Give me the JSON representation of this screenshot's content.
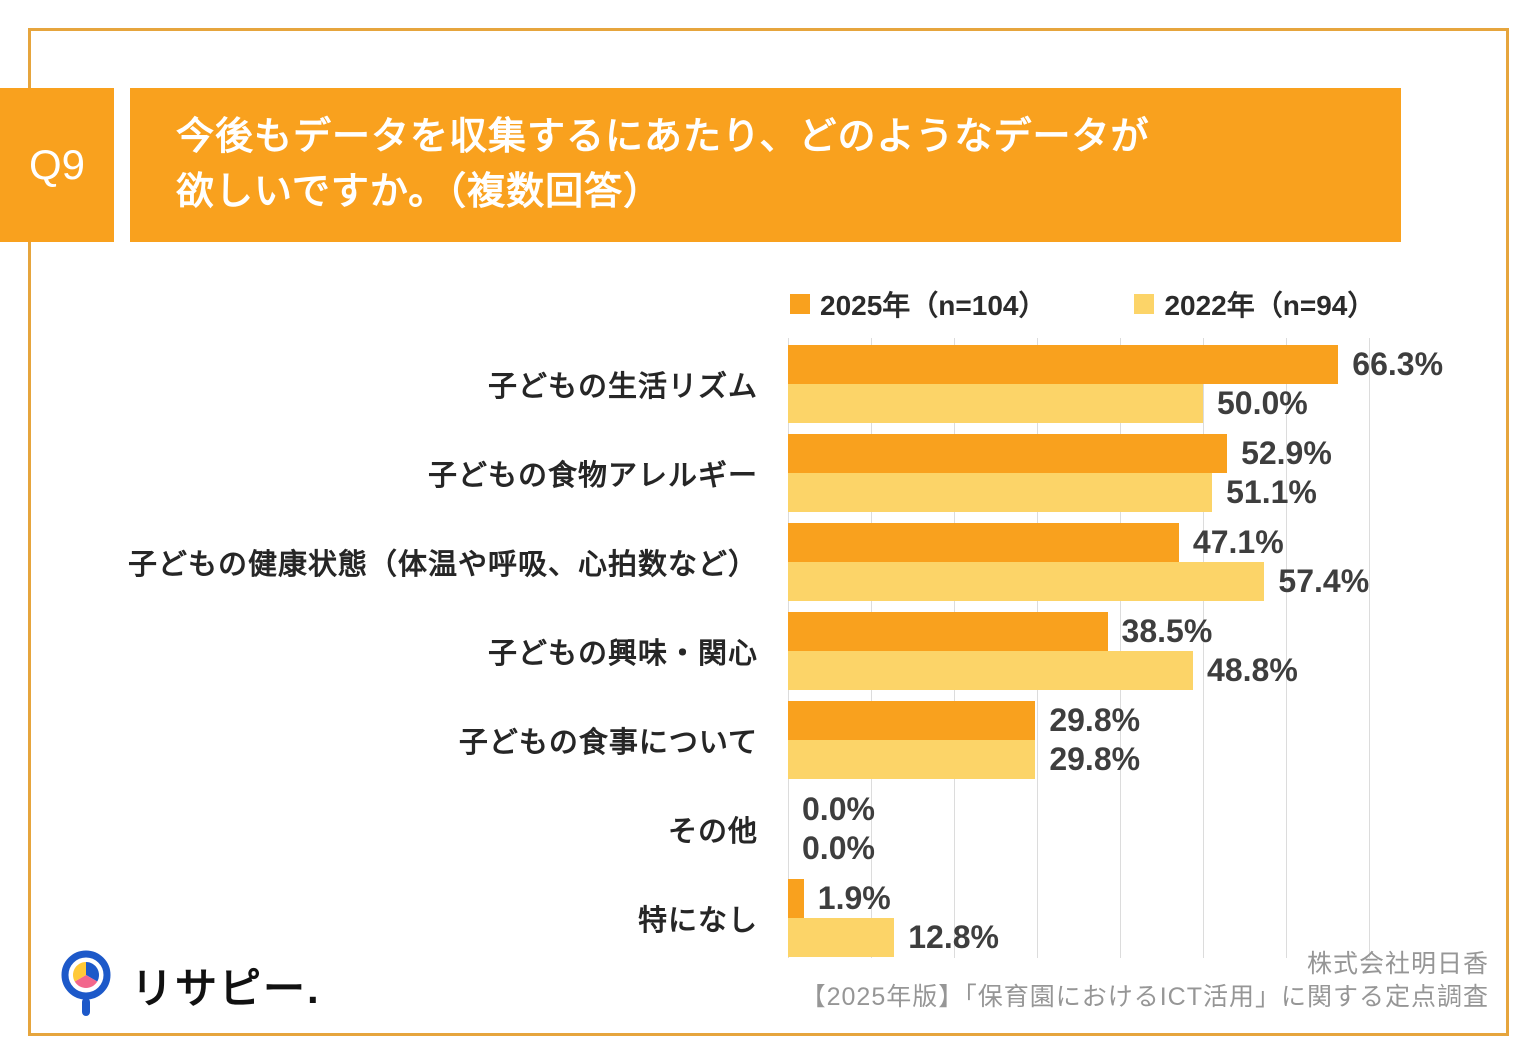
{
  "header": {
    "q_label": "Q9",
    "title_line1": "今後もデータを収集するにあたり、どのようなデータが",
    "title_line2": "欲しいですか。（複数回答）"
  },
  "chart_data": {
    "type": "bar",
    "orientation": "horizontal",
    "title": "今後もデータを収集するにあたり、どのようなデータが欲しいですか。（複数回答）",
    "categories": [
      "子どもの生活リズム",
      "子どもの食物アレルギー",
      "子どもの健康状態（体温や呼吸、心拍数など）",
      "子どもの興味・関心",
      "子どもの食事について",
      "その他",
      "特になし"
    ],
    "series": [
      {
        "name": "2025年（n=104）",
        "color": "#F9A11E",
        "values": [
          66.3,
          52.9,
          47.1,
          38.5,
          29.8,
          0.0,
          1.9
        ]
      },
      {
        "name": "2022年（n=94）",
        "color": "#FCD468",
        "values": [
          50.0,
          51.1,
          57.4,
          48.8,
          29.8,
          0.0,
          12.8
        ]
      }
    ],
    "value_suffix": "%",
    "xlim": [
      0,
      70
    ],
    "grid_step": 10,
    "grid": true,
    "legend_position": "top"
  },
  "footer": {
    "company": "株式会社明日香",
    "survey": "【2025年版】「保育園におけるICT活用」に関する定点調査",
    "logo_text": "リサピー."
  },
  "colors": {
    "orange_2025": "#F9A11E",
    "yellow_2022": "#FCD468",
    "frame_border": "#E6A53D",
    "gridline": "#DCDCDC",
    "value_text": "#3E3E3E",
    "category_text": "#262626",
    "footer_text": "#969696",
    "logo_blue": "#1D59C9",
    "logo_pink": "#F2678C",
    "logo_yellow": "#FFC937"
  }
}
